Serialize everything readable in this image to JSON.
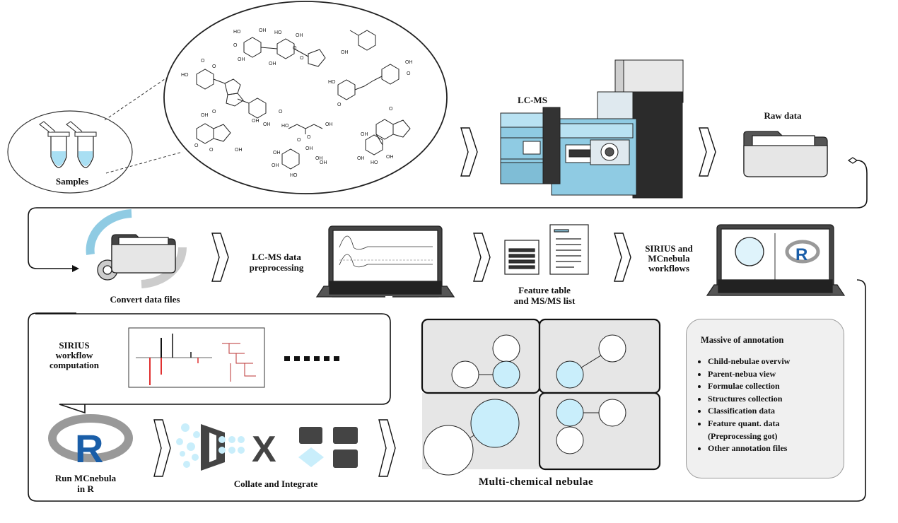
{
  "labels": {
    "samples": "Samples",
    "lcms": "LC-MS",
    "raw_data": "Raw data",
    "convert": "Convert data files",
    "preprocess_l1": "LC-MS data",
    "preprocess_l2": "preprocessing",
    "feature_l1": "Feature table",
    "feature_l2": "and MS/MS list",
    "sirius_mc_l1": "SIRIUS and",
    "sirius_mc_l2": "MCnebula",
    "sirius_mc_l3": "workflows",
    "sirius_wf_l1": "SIRIUS",
    "sirius_wf_l2": "workflow",
    "sirius_wf_l3": "computation",
    "dots": "......",
    "run_l1": "Run MCnebula",
    "run_l2": "in R",
    "collate": "Collate and Integrate",
    "nebulae": "Multi-chemical nebulae",
    "x_symbol": "X"
  },
  "annotation_box": {
    "title": "Massive of  annotation",
    "items": [
      "Child-nebulae overviw",
      "Parent-nebua view",
      "Formulae collection",
      "Structures collection",
      "Classification data",
      "Feature quant. data",
      "(Preprocessing got)",
      "Other annotation files"
    ]
  },
  "molecule_atoms": [
    "HO",
    "OH",
    "O",
    "OH",
    "OH",
    "HO",
    "OH",
    "O",
    "O",
    "OH",
    "HO",
    "O",
    "O",
    "OH",
    "OH",
    "O",
    "O",
    "OH",
    "O",
    "O",
    "OH",
    "HO",
    "OH",
    "O",
    "O",
    "O",
    "OH",
    "O",
    "O",
    "HO",
    "OH",
    "OH",
    "HO",
    "OH",
    "OH",
    "OH",
    "HO",
    "OH",
    "OH",
    "OH"
  ],
  "colors": {
    "accent_blue": "#c9eefb",
    "tube_blue": "#a9dff3",
    "instrument_blue": "#8fcbe3",
    "panel_gray": "#e6e6e6",
    "dark_gray": "#444444"
  }
}
